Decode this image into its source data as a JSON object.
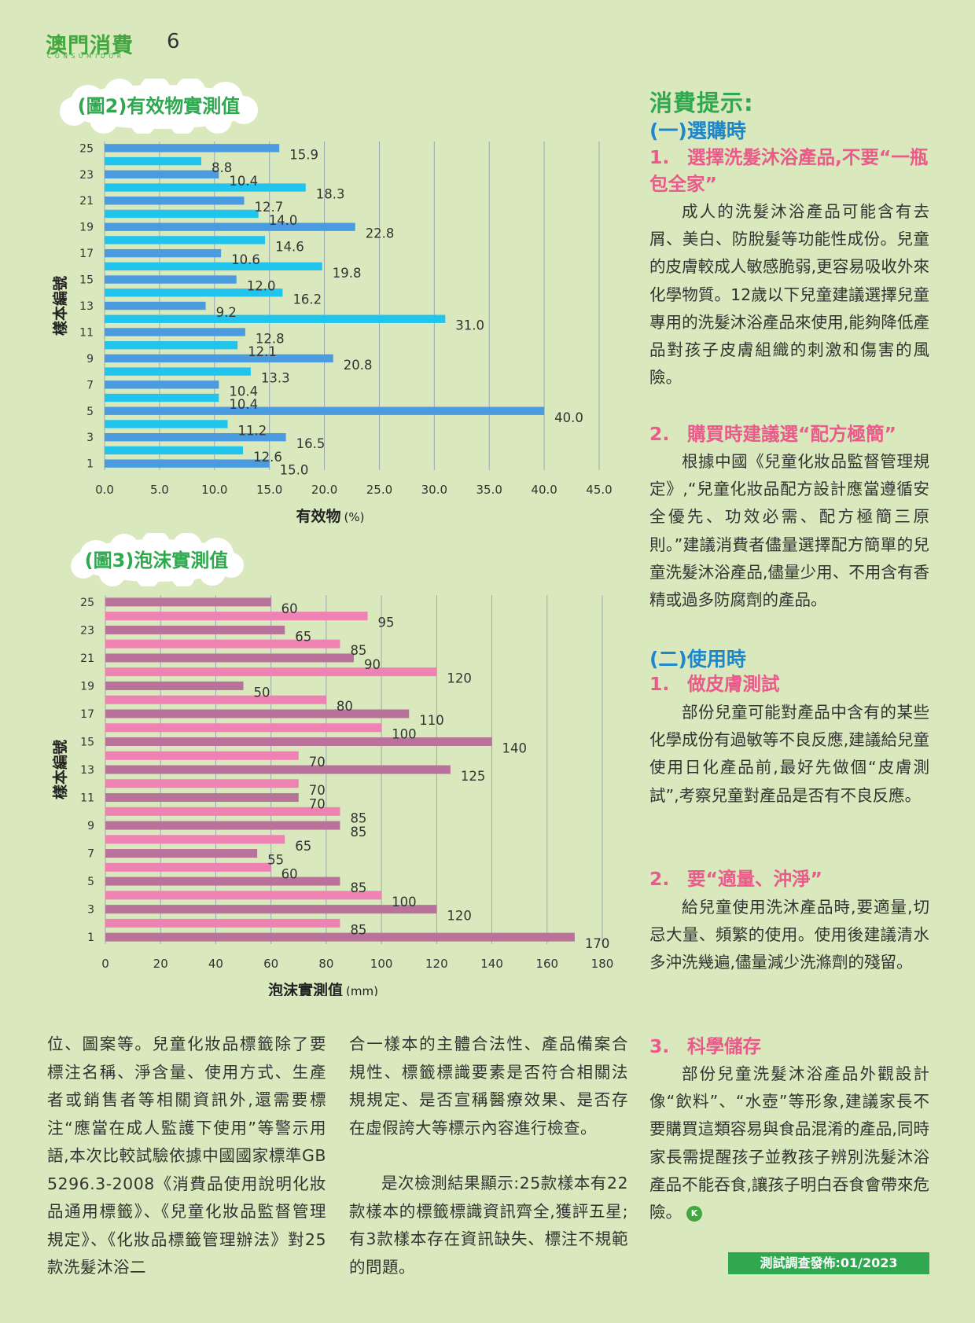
{
  "header": {
    "logo": "澳門消費",
    "logo_sub": "CONSUMIDOR",
    "page_number": "6"
  },
  "chart2_title": "(圖2)有效物實測值",
  "chart3_title": "(圖3)泡沫實測值",
  "chart_data": [
    {
      "type": "bar",
      "orientation": "horizontal",
      "title": "(圖2)有效物實測值",
      "xlabel": "有效物",
      "xunit": "(%)",
      "ylabel": "樣本編號",
      "categories": [
        1,
        2,
        3,
        4,
        5,
        6,
        7,
        8,
        9,
        10,
        11,
        12,
        13,
        14,
        15,
        16,
        17,
        18,
        19,
        20,
        21,
        22,
        23,
        24,
        25
      ],
      "y_tick_labels": [
        "1",
        "3",
        "5",
        "7",
        "9",
        "11",
        "13",
        "15",
        "17",
        "19",
        "21",
        "23",
        "25"
      ],
      "values": [
        15.0,
        12.6,
        16.5,
        11.2,
        40.0,
        10.4,
        10.4,
        13.3,
        20.8,
        12.1,
        12.8,
        31.0,
        9.2,
        16.2,
        12.0,
        19.8,
        10.6,
        14.6,
        22.8,
        14.0,
        12.7,
        18.3,
        10.4,
        8.8,
        15.9
      ],
      "value_labels": [
        "15.0",
        "12.6",
        "16.5",
        "11.2",
        "40.0",
        "10.4",
        "10.4",
        "13.3",
        "20.8",
        "12.1",
        "12.8",
        "31.0",
        "9.2",
        "16.2",
        "12.0",
        "19.8",
        "10.6",
        "14.6",
        "22.8",
        "14.0",
        "12.7",
        "18.3",
        "10.4",
        "8.8",
        "15.9"
      ],
      "x_ticks": [
        "0.0",
        "5.0",
        "10.0",
        "15.0",
        "20.0",
        "25.0",
        "30.0",
        "35.0",
        "40.0",
        "45.0"
      ],
      "xlim": [
        0,
        45
      ],
      "grid": true,
      "colors": {
        "odd": "#4a9be0",
        "even": "#20c4ec"
      }
    },
    {
      "type": "bar",
      "orientation": "horizontal",
      "title": "(圖3)泡沫實測值",
      "xlabel": "泡沫實測值",
      "xunit": "(mm)",
      "ylabel": "樣本編號",
      "categories": [
        1,
        2,
        3,
        4,
        5,
        6,
        7,
        8,
        9,
        10,
        11,
        12,
        13,
        14,
        15,
        16,
        17,
        18,
        19,
        20,
        21,
        22,
        23,
        24,
        25
      ],
      "y_tick_labels": [
        "1",
        "3",
        "5",
        "7",
        "9",
        "11",
        "13",
        "15",
        "17",
        "19",
        "21",
        "23",
        "25"
      ],
      "values": [
        170,
        85,
        120,
        100,
        85,
        60,
        55,
        65,
        85,
        85,
        70,
        70,
        125,
        70,
        140,
        100,
        110,
        80,
        50,
        120,
        90,
        85,
        65,
        95,
        60
      ],
      "value_labels": [
        "170",
        "85",
        "120",
        "100",
        "85",
        "60",
        "55",
        "65",
        "85",
        "85",
        "70",
        "70",
        "125",
        "70",
        "140",
        "100",
        "110",
        "80",
        "50",
        "120",
        "90",
        "85",
        "65",
        "95",
        "60"
      ],
      "x_ticks": [
        "0",
        "20",
        "40",
        "60",
        "80",
        "100",
        "120",
        "140",
        "160",
        "180"
      ],
      "xlim": [
        0,
        180
      ],
      "grid": true,
      "colors": {
        "odd": "#b9739a",
        "even": "#ee82b3"
      }
    }
  ],
  "tips": {
    "title": "消費提示:",
    "sec1": "(一)選購時",
    "items1": [
      {
        "num": "1.",
        "head": "選擇洗髮沐浴產品,不要“一瓶包全家”",
        "body": "成人的洗髮沐浴產品可能含有去屑、美白、防脫髮等功能性成份。兒童的皮膚較成人敏感脆弱,更容易吸收外來化學物質。12歲以下兒童建議選擇兒童專用的洗髮沐浴產品來使用,能夠降低產品對孩子皮膚組織的刺激和傷害的風險。"
      },
      {
        "num": "2.",
        "head": "購買時建議選“配方極簡”",
        "body": "根據中國《兒童化妝品監督管理規定》,“兒童化妝品配方設計應當遵循安全優先、功效必需、配方極簡三原則。”建議消費者儘量選擇配方簡單的兒童洗髮沐浴產品,儘量少用、不用含有香精或過多防腐劑的產品。"
      }
    ],
    "sec2": "(二)使用時",
    "items2": [
      {
        "num": "1.",
        "head": "做皮膚測試",
        "body": "部份兒童可能對產品中含有的某些化學成份有過敏等不良反應,建議給兒童使用日化產品前,最好先做個“皮膚測試”,考察兒童對產品是否有不良反應。"
      },
      {
        "num": "2.",
        "head": "要“適量、沖淨”",
        "body": "給兒童使用洗沐產品時,要適量,切忌大量、頻繁的使用。使用後建議清水多沖洗幾遍,儘量減少洗滌劑的殘留。"
      },
      {
        "num": "3.",
        "head": "科學儲存",
        "body": "部份兒童洗髮沐浴產品外觀設計像“飲料”、“水壺”等形象,建議家長不要購買這類容易與食品混淆的產品,同時家長需提醒孩子並教孩子辨別洗髮沐浴產品不能吞食,讓孩子明白吞食會帶來危險。"
      }
    ],
    "end_badge": "K"
  },
  "article": {
    "col1": "位、圖案等。兒童化妝品標籤除了要標注名稱、淨含量、使用方式、生產者或銷售者等相關資訊外,還需要標注“應當在成人監護下使用”等警示用語,本次比較試驗依據中國國家標準GB 5296.3-2008《消費品使用說明化妝品通用標籤》、《兒童化妝品監督管理規定》、《化妝品標籤管理辦法》對25款洗髮沐浴二",
    "col2a": "合一樣本的主體合法性、產品備案合規性、標籤標識要素是否符合相關法規規定、是否宣稱醫療效果、是否存在虛假誇大等標示內容進行檢查。",
    "col2b": "是次檢測結果顯示:25款樣本有22款樣本的標籤標識資訊齊全,獲評五星;有3款樣本存在資訊缺失、標注不規範的問題。"
  },
  "footer": {
    "text": "測試調查發佈:01/2023"
  }
}
